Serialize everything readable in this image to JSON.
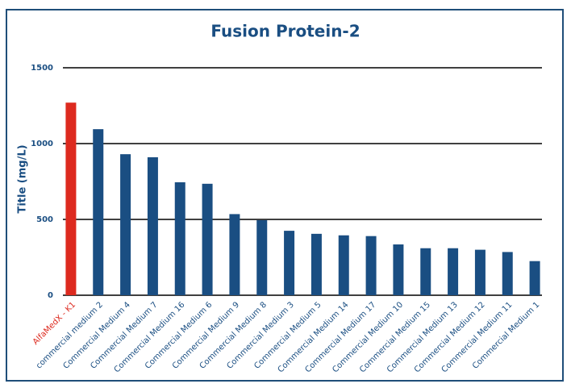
{
  "chart_data": {
    "type": "bar",
    "title": "Fusion Protein-2",
    "y_label": "Title (mg/L)",
    "categories": [
      "AlfaMedX - K1",
      "commercial medium 2",
      "Commercial Medium 4",
      "Commercial Medium 7",
      "Commercial Medium 16",
      "Commercial Medium 6",
      "Commercial Medium 9",
      "Commercial Medium 8",
      "Commercial Medium 3",
      "Commercial Medium 5",
      "Commercial Medium 14",
      "Commercial Medium 17",
      "Commercial Medium 10",
      "Commercial Medium 15",
      "Commercial Medium 13",
      "Commercial Medium 12",
      "Commercial Medium 11",
      "Commercial Medium 1"
    ],
    "values": [
      1270,
      1095,
      930,
      910,
      745,
      735,
      535,
      495,
      425,
      405,
      395,
      390,
      335,
      310,
      310,
      300,
      285,
      225
    ],
    "colors": [
      "#dd2a1f",
      "#1a4e82",
      "#1a4e82",
      "#1a4e82",
      "#1a4e82",
      "#1a4e82",
      "#1a4e82",
      "#1a4e82",
      "#1a4e82",
      "#1a4e82",
      "#1a4e82",
      "#1a4e82",
      "#1a4e82",
      "#1a4e82",
      "#1a4e82",
      "#1a4e82",
      "#1a4e82",
      "#1a4e82"
    ],
    "ylim": [
      0,
      1500
    ],
    "yticks": [
      0,
      500,
      1000,
      1500
    ],
    "grid": true
  }
}
